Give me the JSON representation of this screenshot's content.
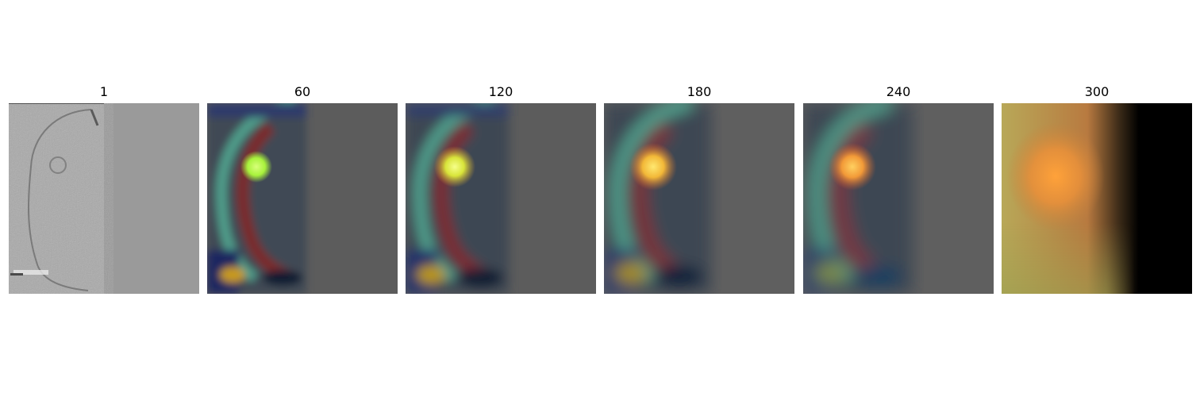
{
  "panels": [
    {
      "title": "1"
    },
    {
      "title": "60"
    },
    {
      "title": "120"
    },
    {
      "title": "180"
    },
    {
      "title": "240"
    },
    {
      "title": "300"
    }
  ],
  "colors": {
    "background": "#ffffff",
    "raw_gray": "#999999",
    "mid_gray": "#5c5c5c",
    "hot_spot_green": "#b7ff4a",
    "hot_spot_yellow": "#f2e04b",
    "hot_spot_orange": "#f7a23a",
    "final_black": "#000000"
  }
}
